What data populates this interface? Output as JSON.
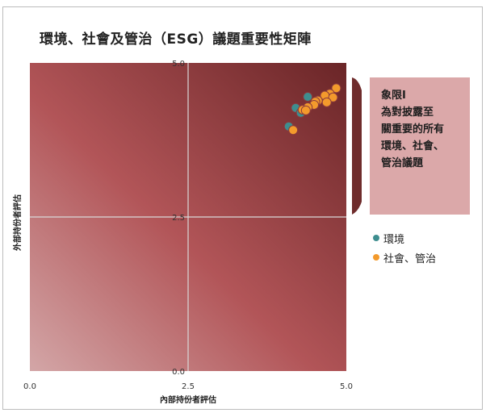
{
  "chart_data": {
    "type": "scatter",
    "title": "環境、社會及管治（ESG）議題重要性矩陣",
    "xlabel": "內部持份者評估",
    "ylabel": "外部持份者評估",
    "xlim": [
      0,
      5
    ],
    "ylim": [
      0,
      5
    ],
    "x_ticks": [
      "0.0",
      "2.5",
      "5.0"
    ],
    "y_ticks": [
      "0.0",
      "2.5",
      "5.0"
    ],
    "grid": true,
    "legend_position": "right",
    "callout": "象限I\n為對披露至\n關重要的所有\n環境、社會、\n管治議題",
    "colors": {
      "plot_dark": "#6a2527",
      "plot_mid": "#b25558",
      "plot_light": "#d3a6a7",
      "callout_bg": "#dba8a9",
      "bracket": "#6f2c2c"
    },
    "series": [
      {
        "name": "環境",
        "color": "#3e8e8f",
        "points": [
          {
            "x": 4.39,
            "y": 4.45
          },
          {
            "x": 4.2,
            "y": 4.27
          },
          {
            "x": 4.28,
            "y": 4.19
          },
          {
            "x": 4.09,
            "y": 3.97
          }
        ]
      },
      {
        "name": "社會、管治",
        "color": "#f39a2c",
        "points": [
          {
            "x": 4.84,
            "y": 4.59
          },
          {
            "x": 4.74,
            "y": 4.5
          },
          {
            "x": 4.66,
            "y": 4.47
          },
          {
            "x": 4.79,
            "y": 4.44
          },
          {
            "x": 4.55,
            "y": 4.39
          },
          {
            "x": 4.51,
            "y": 4.37
          },
          {
            "x": 4.69,
            "y": 4.36
          },
          {
            "x": 4.49,
            "y": 4.32
          },
          {
            "x": 4.39,
            "y": 4.28
          },
          {
            "x": 4.31,
            "y": 4.24
          },
          {
            "x": 4.36,
            "y": 4.23
          },
          {
            "x": 4.16,
            "y": 3.91
          }
        ]
      }
    ]
  }
}
